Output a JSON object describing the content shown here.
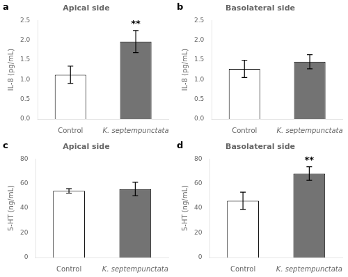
{
  "chart_data": [
    {
      "type": "bar",
      "panel_label": "a",
      "title": "Apical side",
      "ylabel": "IL-8 (pg/mL)",
      "categories": [
        "Control",
        "K. septempunctata"
      ],
      "values": [
        1.12,
        1.96
      ],
      "errors": [
        0.22,
        0.28
      ],
      "colors": [
        "white",
        "#737373"
      ],
      "ylim": [
        0,
        2.5
      ],
      "yticks": [
        {
          "value": 0,
          "label": "0.0"
        },
        0.5,
        {
          "value": 1.0,
          "label": "1.0"
        },
        1.5,
        {
          "value": 2.0,
          "label": "2.0"
        },
        2.5
      ],
      "grid": false,
      "annotations": [
        {
          "text": "**",
          "x": "K. septempunctata"
        }
      ]
    },
    {
      "type": "bar",
      "panel_label": "b",
      "title": "Basolateral side",
      "ylabel": "IL-8 (pg/mL)",
      "categories": [
        "Control",
        "K. septempunctata"
      ],
      "values": [
        1.27,
        1.45
      ],
      "errors": [
        0.22,
        0.18
      ],
      "colors": [
        "white",
        "#737373"
      ],
      "ylim": [
        0,
        2.5
      ],
      "yticks": [
        {
          "value": 0,
          "label": "0.0"
        },
        0.5,
        {
          "value": 1.0,
          "label": "1.0"
        },
        1.5,
        {
          "value": 2.0,
          "label": "2.0"
        },
        2.5
      ],
      "grid": false
    },
    {
      "type": "bar",
      "panel_label": "c",
      "title": "Apical side",
      "ylabel": "5-HT (ng/mL)",
      "categories": [
        "Control",
        "K. septempunctata"
      ],
      "values": [
        54.0,
        55.5
      ],
      "errors": [
        1.8,
        5.5
      ],
      "colors": [
        "white",
        "#737373"
      ],
      "ylim": [
        0,
        80
      ],
      "yticks": [
        0,
        20,
        40,
        60,
        80
      ],
      "grid": false
    },
    {
      "type": "bar",
      "panel_label": "d",
      "title": "Basolateral side",
      "ylabel": "5-HT (ng/mL)",
      "categories": [
        "Control",
        "K. septempunctata"
      ],
      "values": [
        46.0,
        68.0
      ],
      "errors": [
        7.0,
        5.5
      ],
      "colors": [
        "white",
        "#737373"
      ],
      "ylim": [
        0,
        80
      ],
      "yticks": [
        0,
        20,
        40,
        60,
        80
      ],
      "grid": false,
      "annotations": [
        {
          "text": "**",
          "x": "K. septempunctata"
        }
      ]
    }
  ]
}
